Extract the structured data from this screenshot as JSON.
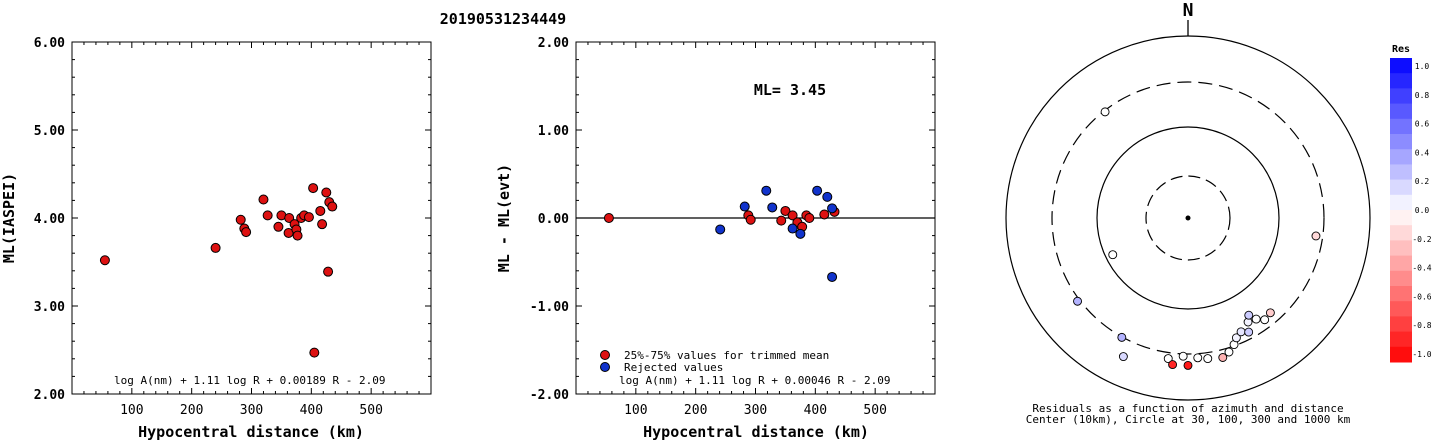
{
  "title": "20190531234449",
  "chart_data": [
    {
      "type": "scatter",
      "xlabel": "Hypocentral distance (km)",
      "ylabel": "ML(IASPEI)",
      "xlim": [
        0,
        600
      ],
      "ylim": [
        2.0,
        6.0
      ],
      "xticks": [
        "100",
        "200",
        "300",
        "400",
        "500"
      ],
      "yticks": [
        "2.00",
        "3.00",
        "4.00",
        "5.00",
        "6.00"
      ],
      "formula": "log A(nm) + 1.11 log R + 0.00189 R - 2.09",
      "color": "#dd1111",
      "points": [
        [
          55,
          3.52
        ],
        [
          240,
          3.66
        ],
        [
          282,
          3.98
        ],
        [
          288,
          3.88
        ],
        [
          291,
          3.84
        ],
        [
          320,
          4.21
        ],
        [
          327,
          4.03
        ],
        [
          345,
          3.9
        ],
        [
          350,
          4.03
        ],
        [
          362,
          3.83
        ],
        [
          363,
          4.0
        ],
        [
          372,
          3.93
        ],
        [
          375,
          3.87
        ],
        [
          377,
          3.8
        ],
        [
          383,
          4.0
        ],
        [
          388,
          4.03
        ],
        [
          396,
          4.01
        ],
        [
          403,
          4.34
        ],
        [
          405,
          2.47
        ],
        [
          415,
          4.08
        ],
        [
          418,
          3.93
        ],
        [
          425,
          4.29
        ],
        [
          428,
          3.39
        ],
        [
          430,
          4.18
        ],
        [
          435,
          4.13
        ]
      ]
    },
    {
      "type": "scatter",
      "xlabel": "Hypocentral distance (km)",
      "ylabel": "ML - ML(evt)",
      "xlim": [
        0,
        600
      ],
      "ylim": [
        -2.0,
        2.0
      ],
      "xticks": [
        "100",
        "200",
        "300",
        "400",
        "500"
      ],
      "yticks": [
        "-2.00",
        "-1.00",
        "0.00",
        "1.00",
        "2.00"
      ],
      "annotation": "ML= 3.45",
      "formula": "log A(nm) + 1.11 log R + 0.00046 R - 2.09",
      "legend": [
        {
          "label": "25%-75% values for trimmed mean",
          "color": "#dd1111"
        },
        {
          "label": "Rejected values",
          "color": "#1133cc"
        }
      ],
      "series": [
        {
          "color": "#dd1111",
          "points": [
            [
              55,
              0.0
            ],
            [
              288,
              0.03
            ],
            [
              292,
              -0.02
            ],
            [
              343,
              -0.03
            ],
            [
              350,
              0.08
            ],
            [
              362,
              0.03
            ],
            [
              370,
              -0.05
            ],
            [
              378,
              -0.1
            ],
            [
              385,
              0.03
            ],
            [
              390,
              0.0
            ],
            [
              415,
              0.04
            ],
            [
              432,
              0.07
            ]
          ]
        },
        {
          "color": "#1133cc",
          "points": [
            [
              241,
              -0.13
            ],
            [
              282,
              0.13
            ],
            [
              318,
              0.31
            ],
            [
              328,
              0.12
            ],
            [
              362,
              -0.12
            ],
            [
              375,
              -0.18
            ],
            [
              403,
              0.31
            ],
            [
              420,
              0.24
            ],
            [
              428,
              0.11
            ],
            [
              428,
              -0.67
            ]
          ]
        }
      ]
    }
  ],
  "polar": {
    "north_label": "N",
    "caption_line1": "Residuals as a function of azimuth and distance",
    "caption_line2": "Center (10km), Circle at 30, 100, 300 and 1000 km",
    "stations": [
      {
        "az": 322,
        "r": 0.74,
        "res": 0.0
      },
      {
        "az": 98,
        "r": 0.71,
        "res": -0.15
      },
      {
        "az": 244,
        "r": 0.46,
        "res": 0.0
      },
      {
        "az": 233,
        "r": 0.76,
        "res": 0.3
      },
      {
        "az": 209,
        "r": 0.75,
        "res": 0.3
      },
      {
        "az": 205,
        "r": 0.84,
        "res": 0.15
      },
      {
        "az": 188,
        "r": 0.78,
        "res": 0.0
      },
      {
        "az": 182,
        "r": 0.76,
        "res": 0.0
      },
      {
        "az": 176,
        "r": 0.77,
        "res": 0.0
      },
      {
        "az": 186,
        "r": 0.81,
        "res": -0.85
      },
      {
        "az": 180,
        "r": 0.81,
        "res": -0.9
      },
      {
        "az": 172,
        "r": 0.78,
        "res": 0.0
      },
      {
        "az": 166,
        "r": 0.79,
        "res": -0.3
      },
      {
        "az": 163,
        "r": 0.77,
        "res": 0.0
      },
      {
        "az": 160,
        "r": 0.74,
        "res": 0.0
      },
      {
        "az": 158,
        "r": 0.71,
        "res": 0.05
      },
      {
        "az": 155,
        "r": 0.69,
        "res": 0.1
      },
      {
        "az": 152,
        "r": 0.71,
        "res": 0.2
      },
      {
        "az": 150,
        "r": 0.66,
        "res": 0.05
      },
      {
        "az": 148,
        "r": 0.63,
        "res": 0.2
      },
      {
        "az": 146,
        "r": 0.67,
        "res": 0.0
      },
      {
        "az": 143,
        "r": 0.7,
        "res": 0.0
      },
      {
        "az": 139,
        "r": 0.69,
        "res": -0.2
      }
    ]
  },
  "colorbar": {
    "title": "Res",
    "labels": [
      "1.0",
      "0.8",
      "0.6",
      "0.4",
      "0.2",
      "0.0",
      "-0.2",
      "-0.4",
      "-0.6",
      "-0.8",
      "-1.0"
    ]
  }
}
